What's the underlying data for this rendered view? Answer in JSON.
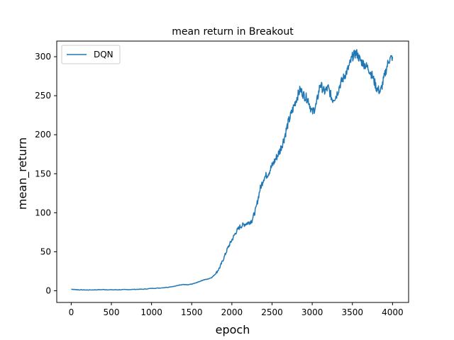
{
  "chart_data": {
    "type": "line",
    "title": "mean return in Breakout",
    "xlabel": "epoch",
    "ylabel": "mean_return",
    "xlim": [
      -180,
      4200
    ],
    "ylim": [
      -15,
      320
    ],
    "xticks": [
      0,
      500,
      1000,
      1500,
      2000,
      2500,
      3000,
      3500,
      4000
    ],
    "yticks": [
      0,
      50,
      100,
      150,
      200,
      250,
      300
    ],
    "grid": false,
    "legend": {
      "placement": "top-left",
      "entries": [
        "DQN"
      ]
    },
    "colors": {
      "series": "#1f77b4",
      "axes": "#000000"
    },
    "series": [
      {
        "name": "DQN",
        "x": [
          0,
          50,
          100,
          200,
          300,
          400,
          500,
          600,
          700,
          800,
          900,
          1000,
          1100,
          1200,
          1300,
          1350,
          1400,
          1450,
          1500,
          1550,
          1600,
          1650,
          1700,
          1750,
          1800,
          1850,
          1900,
          1950,
          2000,
          2050,
          2100,
          2150,
          2200,
          2250,
          2300,
          2350,
          2400,
          2450,
          2500,
          2550,
          2600,
          2650,
          2700,
          2750,
          2800,
          2850,
          2900,
          2950,
          3000,
          3050,
          3100,
          3150,
          3200,
          3250,
          3300,
          3350,
          3400,
          3450,
          3500,
          3550,
          3600,
          3650,
          3700,
          3750,
          3800,
          3850,
          3900,
          3950,
          4000
        ],
        "y": [
          2,
          1.5,
          1.2,
          1.0,
          1.2,
          1.5,
          1.2,
          1.3,
          1.5,
          1.8,
          2.0,
          3.0,
          3.5,
          4.5,
          6.0,
          7.5,
          8.0,
          7.5,
          8.5,
          10.0,
          12.0,
          14.0,
          15.0,
          17.0,
          22.0,
          30.0,
          42.0,
          55.0,
          65.0,
          75.0,
          82.0,
          85.0,
          87.0,
          90.0,
          105.0,
          130.0,
          145.0,
          150.0,
          160.0,
          170.0,
          180.0,
          195.0,
          215.0,
          230.0,
          245.0,
          258.0,
          250.0,
          245.0,
          228.0,
          238.0,
          265.0,
          255.0,
          260.0,
          245.0,
          250.0,
          265.0,
          275.0,
          285.0,
          300.0,
          305.0,
          295.0,
          290.0,
          285.0,
          275.0,
          260.0,
          255.0,
          275.0,
          295.0,
          300.0
        ]
      }
    ]
  }
}
